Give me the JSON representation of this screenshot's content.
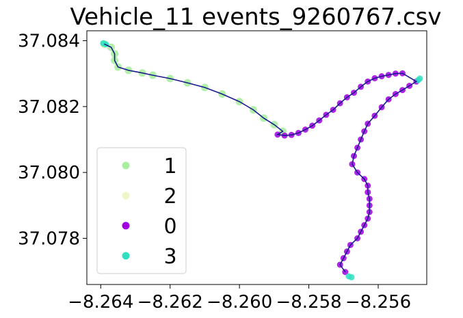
{
  "chart_data": {
    "type": "scatter",
    "title": "Vehicle_11 events_9260767.csv",
    "xlabel": "",
    "ylabel": "",
    "xlim": [
      -8.2644,
      -8.2546
    ],
    "ylim": [
      37.0766,
      37.0843
    ],
    "x_ticks": [
      -8.264,
      -8.262,
      -8.26,
      -8.258,
      -8.256
    ],
    "x_tick_labels": [
      "−8.264",
      "−8.262",
      "−8.260",
      "−8.258",
      "−8.256"
    ],
    "y_ticks": [
      37.078,
      37.08,
      37.082,
      37.084
    ],
    "y_tick_labels": [
      "37.078",
      "37.080",
      "37.082",
      "37.084"
    ],
    "grid": false,
    "legend_placement": "lower-left",
    "legend_order": [
      "1",
      "2",
      "0",
      "3"
    ],
    "series": [
      {
        "name": "1",
        "color": "#aaeea0",
        "points": [
          [
            -8.2639,
            37.0839
          ],
          [
            -8.2637,
            37.0838
          ],
          [
            -8.2636,
            37.0836
          ],
          [
            -8.2636,
            37.0834
          ],
          [
            -8.2635,
            37.0832
          ],
          [
            -8.2632,
            37.0831
          ],
          [
            -8.2628,
            37.08302
          ],
          [
            -8.2625,
            37.08295
          ],
          [
            -8.262,
            37.08285
          ],
          [
            -8.2615,
            37.08272
          ],
          [
            -8.261,
            37.08258
          ],
          [
            -8.2605,
            37.08238
          ],
          [
            -8.26,
            37.08215
          ],
          [
            -8.2596,
            37.0819
          ],
          [
            -8.2593,
            37.08165
          ],
          [
            -8.259,
            37.08145
          ],
          [
            -8.25875,
            37.08125
          ]
        ]
      },
      {
        "name": "0",
        "color": "#a000e0",
        "points": [
          [
            -8.2589,
            37.08115
          ],
          [
            -8.2587,
            37.08112
          ],
          [
            -8.2585,
            37.08114
          ],
          [
            -8.2583,
            37.0812
          ],
          [
            -8.2581,
            37.0813
          ],
          [
            -8.2579,
            37.08142
          ],
          [
            -8.2577,
            37.08158
          ],
          [
            -8.2575,
            37.08175
          ],
          [
            -8.2573,
            37.0819
          ],
          [
            -8.2571,
            37.0821
          ],
          [
            -8.2569,
            37.08228
          ],
          [
            -8.2567,
            37.08242
          ],
          [
            -8.2565,
            37.0826
          ],
          [
            -8.2563,
            37.08276
          ],
          [
            -8.2561,
            37.08286
          ],
          [
            -8.2559,
            37.08292
          ],
          [
            -8.2557,
            37.08296
          ],
          [
            -8.2555,
            37.083
          ],
          [
            -8.2553,
            37.08301
          ],
          [
            -8.2549,
            37.08276
          ],
          [
            -8.2551,
            37.08263
          ],
          [
            -8.2553,
            37.0825
          ],
          [
            -8.2555,
            37.08238
          ],
          [
            -8.2557,
            37.08222
          ],
          [
            -8.2559,
            37.08198
          ],
          [
            -8.2561,
            37.08172
          ],
          [
            -8.2563,
            37.08148
          ],
          [
            -8.2564,
            37.08125
          ],
          [
            -8.2565,
            37.081
          ],
          [
            -8.2566,
            37.08075
          ],
          [
            -8.2567,
            37.0805
          ],
          [
            -8.25675,
            37.08025
          ],
          [
            -8.2566,
            37.08
          ],
          [
            -8.2564,
            37.0798
          ],
          [
            -8.2563,
            37.0796
          ],
          [
            -8.2563,
            37.0794
          ],
          [
            -8.25625,
            37.0792
          ],
          [
            -8.25625,
            37.079
          ],
          [
            -8.25625,
            37.0788
          ],
          [
            -8.2563,
            37.0786
          ],
          [
            -8.2564,
            37.0784
          ],
          [
            -8.2565,
            37.0782
          ],
          [
            -8.2566,
            37.078
          ],
          [
            -8.2568,
            37.0778
          ],
          [
            -8.2569,
            37.0776
          ],
          [
            -8.257,
            37.0774
          ],
          [
            -8.2571,
            37.0772
          ],
          [
            -8.25695,
            37.07698
          ]
        ]
      },
      {
        "name": "3",
        "color": "#2ee0c0",
        "points": [
          [
            -8.26393,
            37.08392
          ],
          [
            -8.26385,
            37.08389
          ],
          [
            -8.2548,
            37.08285
          ],
          [
            -8.25485,
            37.0828
          ],
          [
            -8.25685,
            37.07685
          ],
          [
            -8.25677,
            37.07682
          ]
        ]
      }
    ],
    "track_color": "#1a1a8c",
    "legend_colors": {
      "1": "#aaeea0",
      "2": "#eef6c8",
      "0": "#a000e0",
      "3": "#2ee0c0"
    }
  }
}
